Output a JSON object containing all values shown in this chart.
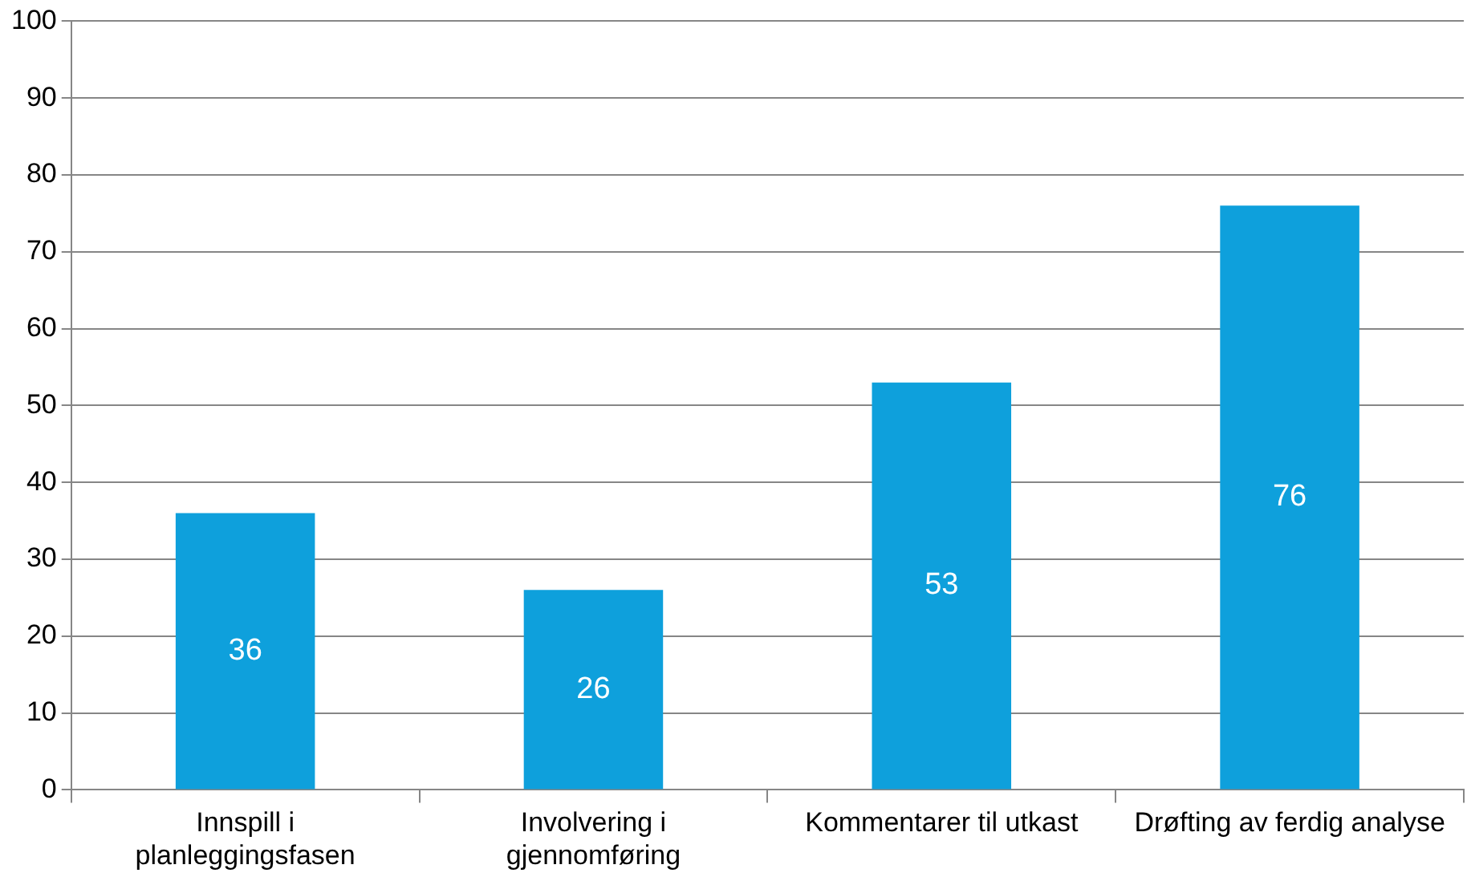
{
  "chart_data": {
    "type": "bar",
    "categories": [
      "Innspill i planleggingsfasen",
      "Involvering i gjennomføring",
      "Kommentarer til utkast",
      "Drøfting av ferdig analyse"
    ],
    "values": [
      36,
      26,
      53,
      76
    ],
    "color": "#0ea0dc",
    "ylim": [
      0,
      100
    ],
    "yticks": [
      0,
      10,
      20,
      30,
      40,
      50,
      60,
      70,
      80,
      90,
      100
    ],
    "grid": "y",
    "data_labels": true,
    "legend": false
  }
}
